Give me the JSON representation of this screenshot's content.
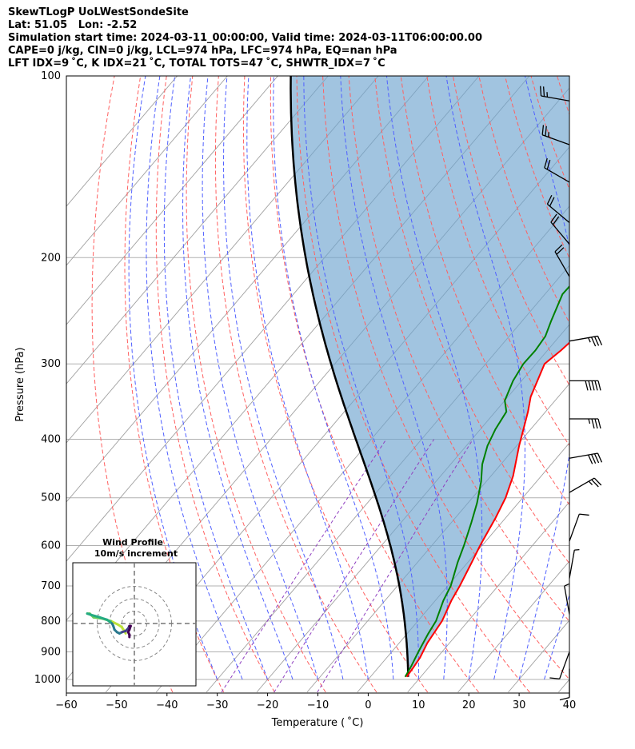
{
  "header": {
    "line1": "SkewTLogP UoLWestSondeSite",
    "line2": "Lat: 51.05   Lon: -2.52",
    "line3": "Simulation start time: 2024-03-11_00:00:00, Valid time: 2024-03-11T06:00:00.00",
    "line4": "CAPE=0 j/kg, CIN=0 j/kg, LCL=974 hPa, LFC=974 hPa, EQ=nan hPa",
    "line5": "LFT IDX=9 ˚C, K IDX=21 ˚C, TOTAL TOTS=47 ˚C, SHWTR_IDX=7 ˚C"
  },
  "chart_data": {
    "type": "line",
    "subtype": "skew-T log-P",
    "xlabel": "Temperature ( ˚C)",
    "ylabel": "Pressure (hPa)",
    "xlim": [
      -60,
      40
    ],
    "ylim": [
      1050,
      100
    ],
    "x_ticks": [
      -60,
      -50,
      -40,
      -30,
      -20,
      -10,
      0,
      10,
      20,
      30,
      40
    ],
    "x_tick_labels": [
      "−60",
      "−50",
      "−40",
      "−30",
      "−20",
      "−10",
      "0",
      "10",
      "20",
      "30",
      "40"
    ],
    "y_ticks": [
      100,
      200,
      300,
      400,
      500,
      600,
      700,
      800,
      900,
      1000
    ],
    "y_tick_labels": [
      "100",
      "200",
      "300",
      "400",
      "500",
      "600",
      "700",
      "800",
      "900",
      "1000"
    ],
    "y_scale": "log",
    "grid": true,
    "series": [
      {
        "role": "temperature",
        "color": "#ff0000",
        "points": [
          [
            7.2,
            990
          ],
          [
            7,
            960
          ],
          [
            6.6,
            920
          ],
          [
            5.6,
            870
          ],
          [
            4.8,
            800
          ],
          [
            3.2,
            740
          ],
          [
            2.4,
            700
          ],
          [
            0.8,
            640
          ],
          [
            -0.4,
            600
          ],
          [
            -2,
            540
          ],
          [
            -3.4,
            500
          ],
          [
            -5.6,
            460
          ],
          [
            -9.5,
            410
          ],
          [
            -13.5,
            360
          ],
          [
            -15.5,
            340
          ],
          [
            -18.3,
            300
          ],
          [
            -17.3,
            285
          ],
          [
            -16.6,
            270
          ],
          [
            -14.2,
            240
          ],
          [
            -10.5,
            210
          ],
          [
            -8.8,
            200
          ],
          [
            -5.5,
            180
          ],
          [
            -1.5,
            160
          ],
          [
            2,
            145
          ],
          [
            3.5,
            135
          ],
          [
            6.5,
            120
          ],
          [
            8.5,
            110
          ],
          [
            10.5,
            100
          ]
        ]
      },
      {
        "role": "dewpoint",
        "color": "#008000",
        "points": [
          [
            6.9,
            990
          ],
          [
            6.3,
            950
          ],
          [
            5.3,
            900
          ],
          [
            4.2,
            840
          ],
          [
            3.6,
            800
          ],
          [
            1.6,
            740
          ],
          [
            0.6,
            700
          ],
          [
            -2,
            640
          ],
          [
            -3.6,
            600
          ],
          [
            -6,
            550
          ],
          [
            -8.2,
            510
          ],
          [
            -11,
            470
          ],
          [
            -13.7,
            440
          ],
          [
            -15.8,
            410
          ],
          [
            -17,
            385
          ],
          [
            -17.8,
            360
          ],
          [
            -20,
            345
          ],
          [
            -21.7,
            320
          ],
          [
            -22.5,
            300
          ],
          [
            -22.4,
            285
          ],
          [
            -22.8,
            270
          ],
          [
            -24.2,
            255
          ],
          [
            -26.5,
            230
          ],
          [
            -26.3,
            210
          ],
          [
            -26,
            190
          ],
          [
            -24.7,
            160
          ],
          [
            -21.7,
            140
          ],
          [
            -16,
            120
          ],
          [
            -11.5,
            108
          ],
          [
            -8.5,
            100
          ]
        ]
      },
      {
        "role": "parcel profile",
        "color": "#000000",
        "description": "moist adiabat from surface",
        "start_temperature_c": 7.5,
        "start_pressure_hpa": 990
      }
    ],
    "shading": {
      "region": "between parcel profile and temperature",
      "color": "#6fa5cf"
    },
    "reference_lines": {
      "dry_adiabats": {
        "color": "#ff0000",
        "style": "dashed"
      },
      "moist_adiabats": {
        "color": "#0000ff",
        "style": "dashed"
      },
      "mixing_lines": {
        "color": "#8833cc",
        "style": "dashed"
      },
      "isotherms": {
        "color": "#808080",
        "style": "solid"
      }
    },
    "wind_barbs": [
      {
        "pressure": 110,
        "speed_kt": 25,
        "direction_deg": 280
      },
      {
        "pressure": 130,
        "speed_kt": 25,
        "direction_deg": 290
      },
      {
        "pressure": 150,
        "speed_kt": 20,
        "direction_deg": 300
      },
      {
        "pressure": 175,
        "speed_kt": 20,
        "direction_deg": 310
      },
      {
        "pressure": 190,
        "speed_kt": 20,
        "direction_deg": 320
      },
      {
        "pressure": 215,
        "speed_kt": 20,
        "direction_deg": 330
      },
      {
        "pressure": 275,
        "speed_kt": 35,
        "direction_deg": 80
      },
      {
        "pressure": 320,
        "speed_kt": 50,
        "direction_deg": 90
      },
      {
        "pressure": 370,
        "speed_kt": 35,
        "direction_deg": 90
      },
      {
        "pressure": 430,
        "speed_kt": 40,
        "direction_deg": 80
      },
      {
        "pressure": 490,
        "speed_kt": 25,
        "direction_deg": 60
      },
      {
        "pressure": 590,
        "speed_kt": 10,
        "direction_deg": 20
      },
      {
        "pressure": 680,
        "speed_kt": 5,
        "direction_deg": 10
      },
      {
        "pressure": 780,
        "speed_kt": 5,
        "direction_deg": 350
      },
      {
        "pressure": 900,
        "speed_kt": 10,
        "direction_deg": 200
      },
      {
        "pressure": 960,
        "speed_kt": 10,
        "direction_deg": 180
      }
    ],
    "hodograph": {
      "title_line1": "Wind Profile",
      "title_line2": "10m/s increment",
      "ring_increment_ms": 10,
      "colormap": [
        "#bde23a",
        "#6cce59",
        "#25ab82",
        "#2a788e",
        "#414487",
        "#440154"
      ],
      "points": [
        [
          -7,
          -8
        ],
        [
          -8,
          -6
        ],
        [
          -9.5,
          -4
        ],
        [
          -10,
          -3
        ],
        [
          -13,
          -1
        ],
        [
          -19,
          2
        ],
        [
          -26,
          4
        ],
        [
          -33,
          5
        ],
        [
          -36,
          8
        ],
        [
          -38,
          8
        ],
        [
          -35,
          7
        ],
        [
          -28,
          5
        ],
        [
          -22,
          3
        ],
        [
          -18,
          0
        ],
        [
          -17,
          -2
        ],
        [
          -16,
          -5
        ],
        [
          -14,
          -7
        ],
        [
          -12,
          -8
        ],
        [
          -10,
          -7
        ],
        [
          -7,
          -6
        ],
        [
          -6,
          -5
        ],
        [
          -5,
          -4
        ],
        [
          -4,
          -2
        ],
        [
          -3,
          -2
        ],
        [
          -4,
          -5
        ],
        [
          -5,
          -7
        ],
        [
          -4,
          -9
        ],
        [
          -4,
          -11
        ]
      ]
    }
  }
}
